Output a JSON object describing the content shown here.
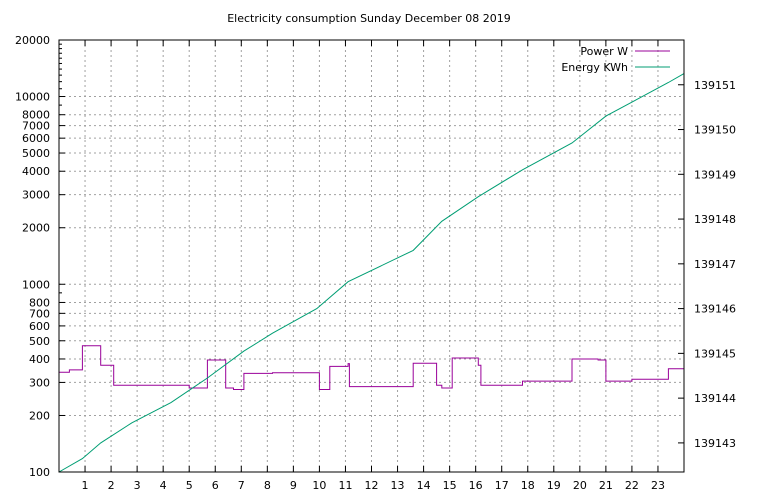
{
  "chart_data": {
    "type": "line",
    "title": "Electricity consumption Sunday December 08 2019",
    "xlabel": "",
    "ylabel": "",
    "y2label": "",
    "grid": true,
    "legend_position": "top-right",
    "x_range": [
      0,
      24
    ],
    "x_ticks": [
      1,
      2,
      3,
      4,
      5,
      6,
      7,
      8,
      9,
      10,
      11,
      12,
      13,
      14,
      15,
      16,
      17,
      18,
      19,
      20,
      21,
      22,
      23
    ],
    "y_scale": "log",
    "y_range": [
      100,
      20000
    ],
    "y_ticks": [
      100,
      200,
      300,
      400,
      500,
      600,
      700,
      800,
      1000,
      2000,
      3000,
      4000,
      5000,
      6000,
      7000,
      8000,
      10000,
      20000
    ],
    "y2_range": [
      139142.35,
      139152.0
    ],
    "y2_ticks": [
      139143,
      139144,
      139145,
      139146,
      139147,
      139148,
      139149,
      139150,
      139151
    ],
    "series": [
      {
        "name": "Power W",
        "axis": "y",
        "color": "#990099",
        "step": true,
        "points": [
          [
            0.0,
            340
          ],
          [
            0.4,
            350
          ],
          [
            0.9,
            470
          ],
          [
            1.6,
            370
          ],
          [
            2.1,
            290
          ],
          [
            4.3,
            290
          ],
          [
            5.0,
            280
          ],
          [
            5.7,
            395
          ],
          [
            6.4,
            280
          ],
          [
            6.7,
            275
          ],
          [
            7.1,
            335
          ],
          [
            8.2,
            338
          ],
          [
            9.9,
            338
          ],
          [
            10.0,
            275
          ],
          [
            10.4,
            365
          ],
          [
            11.1,
            378
          ],
          [
            11.15,
            285
          ],
          [
            13.6,
            380
          ],
          [
            14.5,
            290
          ],
          [
            14.7,
            280
          ],
          [
            15.1,
            405
          ],
          [
            16.1,
            370
          ],
          [
            16.2,
            290
          ],
          [
            17.8,
            305
          ],
          [
            19.7,
            400
          ],
          [
            20.7,
            395
          ],
          [
            21.0,
            305
          ],
          [
            22.0,
            312
          ],
          [
            23.4,
            355
          ],
          [
            24.0,
            355
          ]
        ]
      },
      {
        "name": "Energy KWh",
        "axis": "y2",
        "color": "#009e73",
        "step": false,
        "points": [
          [
            0.0,
            139142.35
          ],
          [
            0.9,
            139142.65
          ],
          [
            1.6,
            139143.0
          ],
          [
            2.8,
            139143.45
          ],
          [
            4.3,
            139143.9
          ],
          [
            5.7,
            139144.45
          ],
          [
            7.1,
            139145.05
          ],
          [
            8.2,
            139145.45
          ],
          [
            9.9,
            139146.0
          ],
          [
            11.1,
            139146.6
          ],
          [
            13.6,
            139147.3
          ],
          [
            14.7,
            139147.95
          ],
          [
            16.1,
            139148.5
          ],
          [
            17.8,
            139149.1
          ],
          [
            19.7,
            139149.7
          ],
          [
            21.0,
            139150.3
          ],
          [
            23.4,
            139151.05
          ],
          [
            24.0,
            139151.25
          ]
        ]
      }
    ]
  }
}
